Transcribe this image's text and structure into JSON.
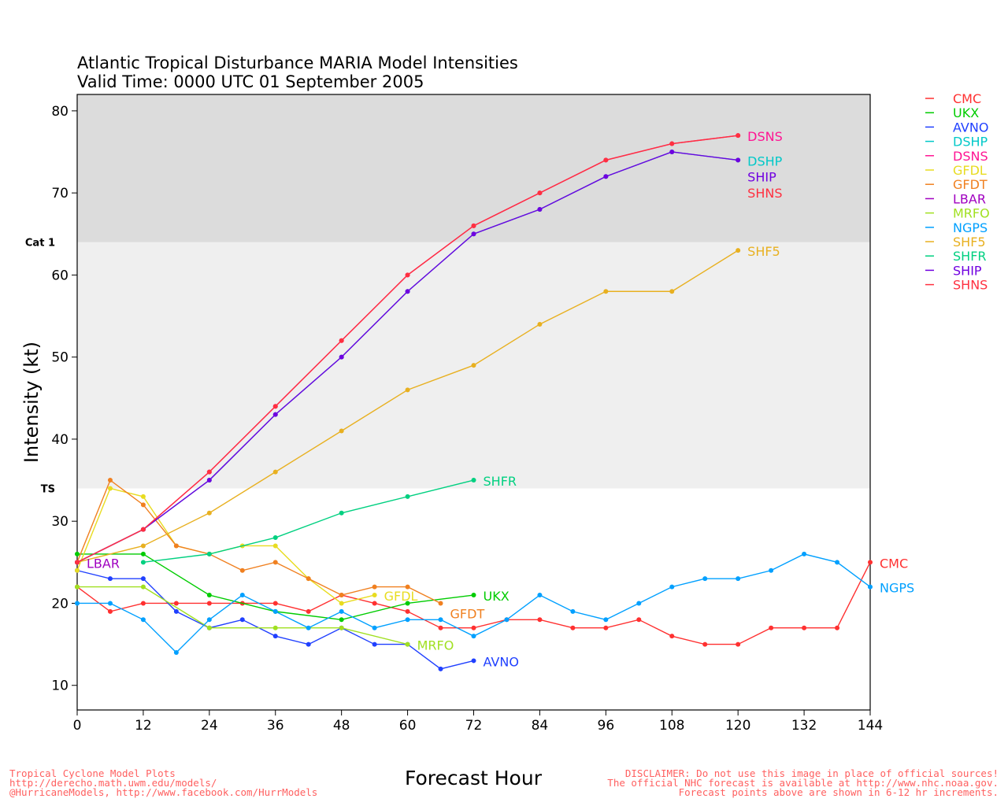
{
  "chart_data": {
    "type": "line",
    "title": "Atlantic Tropical Disturbance MARIA Model Intensities",
    "subtitle": "Valid Time: 0000 UTC 01 September 2005",
    "xlabel": "Forecast Hour",
    "ylabel": "Intensity (kt)",
    "xlim": [
      0,
      144
    ],
    "ylim": [
      7,
      82
    ],
    "xticks": [
      0,
      12,
      24,
      36,
      48,
      60,
      72,
      84,
      96,
      108,
      120,
      132,
      144
    ],
    "yticks": [
      10,
      20,
      30,
      40,
      50,
      60,
      70,
      80
    ],
    "bands": [
      {
        "label": "TS",
        "from": 34,
        "to": 64,
        "color": "#efefef"
      },
      {
        "label": "Cat 1",
        "from": 64,
        "to": 82,
        "color": "#dcdcdc"
      }
    ],
    "legend_position": "right",
    "series": [
      {
        "name": "CMC",
        "color": "#ff3030",
        "points": [
          [
            0,
            22
          ],
          [
            6,
            19
          ],
          [
            12,
            20
          ],
          [
            18,
            20
          ],
          [
            24,
            20
          ],
          [
            30,
            20
          ],
          [
            36,
            20
          ],
          [
            42,
            19
          ],
          [
            48,
            21
          ],
          [
            54,
            20
          ],
          [
            60,
            19
          ],
          [
            66,
            17
          ],
          [
            72,
            17
          ],
          [
            78,
            18
          ],
          [
            84,
            18
          ],
          [
            90,
            17
          ],
          [
            96,
            17
          ],
          [
            102,
            18
          ],
          [
            108,
            16
          ],
          [
            114,
            15
          ],
          [
            120,
            15
          ],
          [
            126,
            17
          ],
          [
            132,
            17
          ],
          [
            138,
            17
          ],
          [
            144,
            25
          ]
        ]
      },
      {
        "name": "UKX",
        "color": "#00cc00",
        "points": [
          [
            0,
            26
          ],
          [
            12,
            26
          ],
          [
            24,
            21
          ],
          [
            36,
            19
          ],
          [
            48,
            18
          ],
          [
            60,
            20
          ],
          [
            72,
            21
          ]
        ]
      },
      {
        "name": "AVNO",
        "color": "#2040ff",
        "points": [
          [
            0,
            24
          ],
          [
            6,
            23
          ],
          [
            12,
            23
          ],
          [
            18,
            19
          ],
          [
            24,
            17
          ],
          [
            30,
            18
          ],
          [
            36,
            16
          ],
          [
            42,
            15
          ],
          [
            48,
            17
          ],
          [
            54,
            15
          ],
          [
            60,
            15
          ],
          [
            66,
            12
          ],
          [
            72,
            13
          ]
        ]
      },
      {
        "name": "DSHP",
        "color": "#00c8c8",
        "points": [
          [
            0,
            25
          ],
          [
            12,
            29
          ],
          [
            24,
            35
          ],
          [
            36,
            43
          ],
          [
            48,
            50
          ],
          [
            60,
            58
          ],
          [
            72,
            65
          ],
          [
            84,
            68
          ],
          [
            96,
            72
          ],
          [
            108,
            75
          ],
          [
            120,
            74
          ]
        ]
      },
      {
        "name": "DSNS",
        "color": "#ff1493",
        "points": [
          [
            0,
            25
          ],
          [
            12,
            29
          ],
          [
            24,
            36
          ],
          [
            36,
            44
          ],
          [
            48,
            52
          ],
          [
            60,
            60
          ],
          [
            72,
            66
          ],
          [
            84,
            70
          ],
          [
            96,
            74
          ],
          [
            108,
            76
          ],
          [
            120,
            77
          ]
        ]
      },
      {
        "name": "GFDL",
        "color": "#e8dc20",
        "points": [
          [
            0,
            24
          ],
          [
            6,
            34
          ],
          [
            12,
            33
          ],
          [
            18,
            27
          ],
          [
            24,
            26
          ],
          [
            30,
            27
          ],
          [
            36,
            27
          ],
          [
            42,
            23
          ],
          [
            48,
            20
          ],
          [
            54,
            21
          ]
        ]
      },
      {
        "name": "GFDT",
        "color": "#f08020",
        "points": [
          [
            0,
            25
          ],
          [
            6,
            35
          ],
          [
            12,
            32
          ],
          [
            18,
            27
          ],
          [
            24,
            26
          ],
          [
            30,
            24
          ],
          [
            36,
            25
          ],
          [
            42,
            23
          ],
          [
            48,
            21
          ],
          [
            54,
            22
          ],
          [
            60,
            22
          ],
          [
            66,
            20
          ]
        ]
      },
      {
        "name": "LBAR",
        "color": "#a000c0",
        "points": [
          [
            0,
            25
          ]
        ]
      },
      {
        "name": "MRFO",
        "color": "#a0e020",
        "points": [
          [
            0,
            22
          ],
          [
            12,
            22
          ],
          [
            24,
            17
          ],
          [
            36,
            17
          ],
          [
            48,
            17
          ],
          [
            60,
            15
          ]
        ]
      },
      {
        "name": "NGPS",
        "color": "#00a0ff",
        "points": [
          [
            0,
            20
          ],
          [
            6,
            20
          ],
          [
            12,
            18
          ],
          [
            18,
            14
          ],
          [
            24,
            18
          ],
          [
            30,
            21
          ],
          [
            36,
            19
          ],
          [
            42,
            17
          ],
          [
            48,
            19
          ],
          [
            54,
            17
          ],
          [
            60,
            18
          ],
          [
            66,
            18
          ],
          [
            72,
            16
          ],
          [
            78,
            18
          ],
          [
            84,
            21
          ],
          [
            90,
            19
          ],
          [
            96,
            18
          ],
          [
            102,
            20
          ],
          [
            108,
            22
          ],
          [
            114,
            23
          ],
          [
            120,
            23
          ],
          [
            126,
            24
          ],
          [
            132,
            26
          ],
          [
            138,
            25
          ],
          [
            144,
            22
          ]
        ]
      },
      {
        "name": "SHF5",
        "color": "#e8b020",
        "points": [
          [
            0,
            25
          ],
          [
            12,
            27
          ],
          [
            24,
            31
          ],
          [
            36,
            36
          ],
          [
            48,
            41
          ],
          [
            60,
            46
          ],
          [
            72,
            49
          ],
          [
            84,
            54
          ],
          [
            96,
            58
          ],
          [
            108,
            58
          ],
          [
            120,
            63
          ]
        ]
      },
      {
        "name": "SHFR",
        "color": "#00d080",
        "points": [
          [
            12,
            25
          ],
          [
            24,
            26
          ],
          [
            36,
            28
          ],
          [
            48,
            31
          ],
          [
            60,
            33
          ],
          [
            72,
            35
          ]
        ]
      },
      {
        "name": "SHIP",
        "color": "#7000e0",
        "points": [
          [
            0,
            25
          ],
          [
            12,
            29
          ],
          [
            24,
            35
          ],
          [
            36,
            43
          ],
          [
            48,
            50
          ],
          [
            60,
            58
          ],
          [
            72,
            65
          ],
          [
            84,
            68
          ],
          [
            96,
            72
          ],
          [
            108,
            75
          ],
          [
            120,
            74
          ]
        ]
      },
      {
        "name": "SHNS",
        "color": "#ff3040",
        "points": [
          [
            0,
            25
          ],
          [
            12,
            29
          ],
          [
            24,
            36
          ],
          [
            36,
            44
          ],
          [
            48,
            52
          ],
          [
            60,
            60
          ],
          [
            72,
            66
          ],
          [
            84,
            70
          ],
          [
            96,
            74
          ],
          [
            108,
            76
          ],
          [
            120,
            77
          ]
        ]
      }
    ]
  },
  "footer": {
    "left": [
      "Tropical Cyclone Model Plots",
      "http://derecho.math.uwm.edu/models/",
      "@HurricaneModels, http://www.facebook.com/HurrModels"
    ],
    "right": [
      "DISCLAIMER: Do not use this image in place of official sources!",
      "The official NHC forecast is available at http://www.nhc.noaa.gov.",
      "Forecast points above are shown in 6-12 hr increments."
    ]
  }
}
